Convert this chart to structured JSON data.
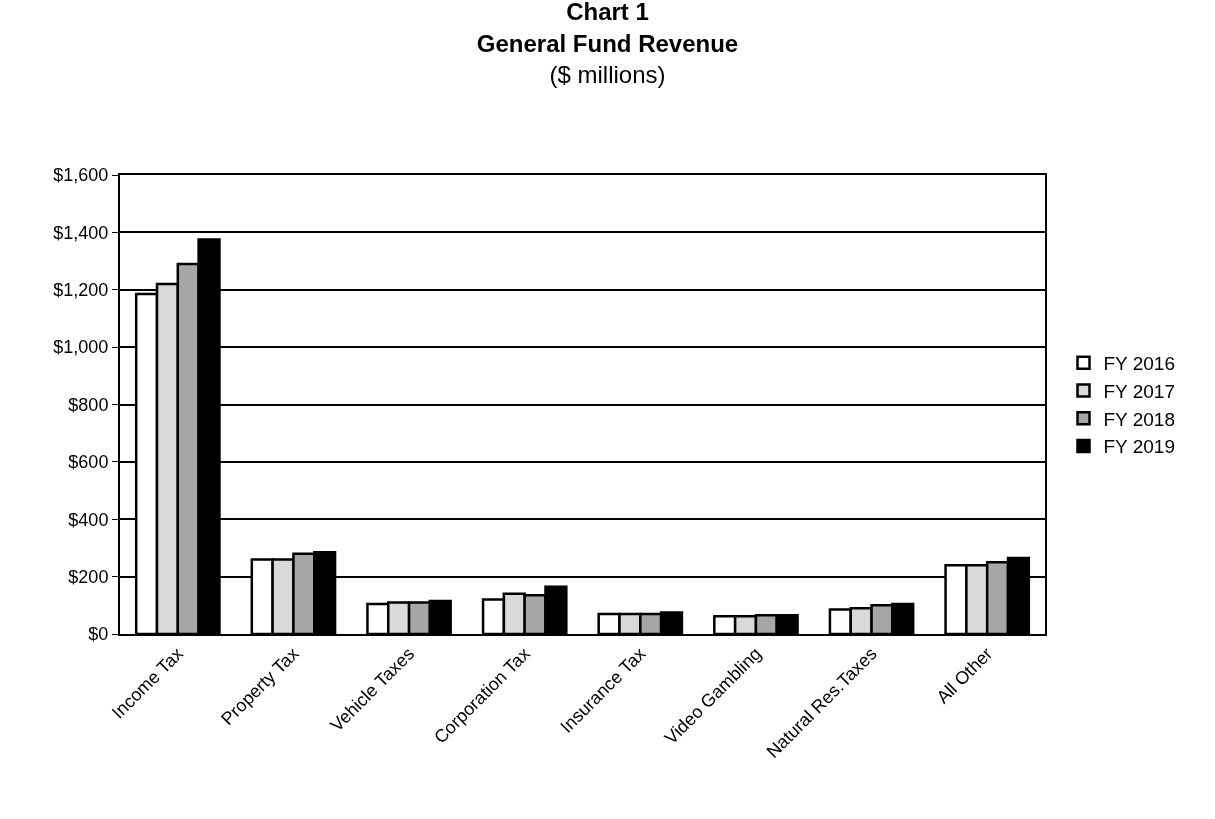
{
  "chart_data": {
    "type": "bar",
    "title": "Chart 1",
    "subtitle": "General Fund Revenue",
    "ylabel": "($ millions)",
    "categories": [
      "Income Tax",
      "Property Tax",
      "Vehicle Taxes",
      "Corporation Tax",
      "Insurance Tax",
      "Video Gambling",
      "Natural Res.Taxes",
      "All Other"
    ],
    "series": [
      {
        "name": "FY 2016",
        "color": "#ffffff",
        "values": [
          1185,
          260,
          105,
          120,
          70,
          62,
          85,
          240
        ]
      },
      {
        "name": "FY 2017",
        "color": "#d9d9d9",
        "values": [
          1220,
          260,
          110,
          140,
          70,
          62,
          90,
          240
        ]
      },
      {
        "name": "FY 2018",
        "color": "#a6a6a6",
        "values": [
          1290,
          280,
          110,
          135,
          70,
          65,
          100,
          250
        ]
      },
      {
        "name": "FY 2019",
        "color": "#000000",
        "values": [
          1375,
          285,
          115,
          165,
          75,
          65,
          105,
          265
        ]
      }
    ],
    "ylim": [
      0,
      1600
    ],
    "yticks": [
      {
        "value": 0,
        "label": "$0"
      },
      {
        "value": 200,
        "label": "$200"
      },
      {
        "value": 400,
        "label": "$400"
      },
      {
        "value": 600,
        "label": "$600"
      },
      {
        "value": 800,
        "label": "$800"
      },
      {
        "value": 1000,
        "label": "$1,000"
      },
      {
        "value": 1200,
        "label": "$1,200"
      },
      {
        "value": 1400,
        "label": "$1,400"
      },
      {
        "value": 1600,
        "label": "$1,600"
      }
    ],
    "grid": "y",
    "legend": "right"
  }
}
